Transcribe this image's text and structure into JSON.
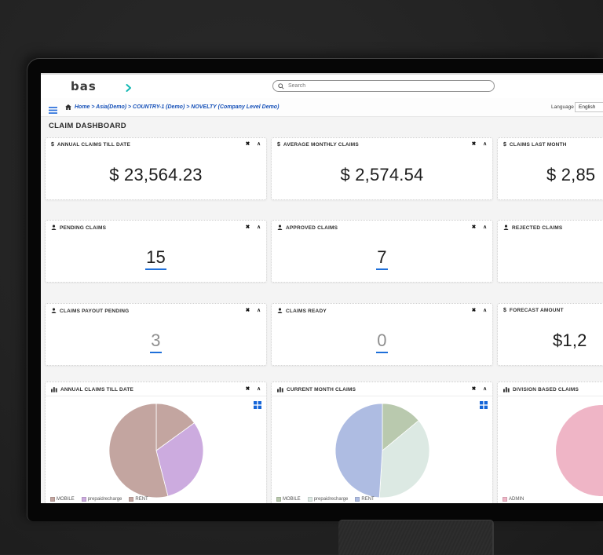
{
  "topbar": {
    "logo": "bas",
    "search_placeholder": "Search"
  },
  "breadcrumb": {
    "text": "Home > Asia(Demo) > COUNTRY-1 (Demo) > NOVELTY (Company Level Demo)"
  },
  "language": {
    "label": "Language",
    "value": "English"
  },
  "page": {
    "title": "CLAIM DASHBOARD"
  },
  "icons": {
    "close": "✖",
    "collapse": "∧",
    "dollar": "$"
  },
  "stat_cards": [
    {
      "title": "ANNUAL CLAIMS TILL DATE",
      "icon": "dollar-icon",
      "value": "$ 23,564.23"
    },
    {
      "title": "AVERAGE MONTHLY CLAIMS",
      "icon": "dollar-icon",
      "value": "$ 2,574.54"
    },
    {
      "title": "CLAIMS LAST MONTH",
      "icon": "dollar-icon",
      "value": "$ 2,85"
    },
    {
      "title": "PENDING CLAIMS",
      "icon": "user-icon",
      "value": "15"
    },
    {
      "title": "APPROVED CLAIMS",
      "icon": "user-icon",
      "value": "7"
    },
    {
      "title": "REJECTED CLAIMS",
      "icon": "user-icon",
      "value": ""
    },
    {
      "title": "CLAIMS PAYOUT PENDING",
      "icon": "user-icon",
      "value": "3"
    },
    {
      "title": "CLAIMS READY",
      "icon": "user-icon",
      "value": "0"
    },
    {
      "title": "FORECAST AMOUNT",
      "icon": "dollar-icon",
      "value": "$1,2"
    }
  ],
  "chart_data": [
    {
      "type": "pie",
      "title": "ANNUAL CLAIMS TILL DATE",
      "labels": [
        "MOBILE",
        "prepaidrecharge",
        "RENT"
      ],
      "values": [
        15,
        31,
        54
      ],
      "colors": [
        "#c3a5a0",
        "#ccabdf",
        "#c3a5a0"
      ],
      "legend_position": "bottom-left"
    },
    {
      "type": "pie",
      "title": "CURRENT MONTH CLAIMS",
      "labels": [
        "MOBILE",
        "prepaidrecharge",
        "RENT"
      ],
      "values": [
        14,
        37,
        49
      ],
      "colors": [
        "#b9c9ae",
        "#dce9e3",
        "#aebce2"
      ],
      "legend_position": "bottom-left"
    },
    {
      "type": "pie",
      "title": "DIVISION BASED CLAIMS",
      "labels": [
        "ADMIN"
      ],
      "values": [
        100
      ],
      "colors": [
        "#efb5c6"
      ],
      "legend_position": "bottom-left"
    }
  ]
}
